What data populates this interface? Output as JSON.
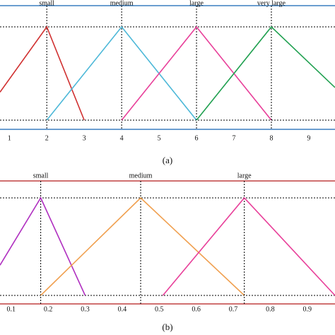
{
  "chart_data": [
    {
      "type": "line",
      "caption": "(a)",
      "frame_color": "#3a7fc0",
      "xlim": [
        0.75,
        9.7
      ],
      "ylim": [
        0,
        1
      ],
      "xticks": [
        1,
        2,
        3,
        4,
        5,
        6,
        7,
        8,
        9
      ],
      "series": [
        {
          "name": "small",
          "color": "#d03030",
          "x": [
            0.75,
            2,
            3
          ],
          "values": [
            0.3,
            1,
            0
          ]
        },
        {
          "name": "medium",
          "color": "#4db8d8",
          "x": [
            2,
            4,
            6
          ],
          "values": [
            0,
            1,
            0
          ]
        },
        {
          "name": "large",
          "color": "#e8409a",
          "x": [
            4,
            6,
            8
          ],
          "values": [
            0,
            1,
            0
          ]
        },
        {
          "name": "very large",
          "color": "#20a050",
          "x": [
            6,
            8,
            9.7
          ],
          "values": [
            0,
            1,
            0.35
          ]
        }
      ]
    },
    {
      "type": "line",
      "caption": "(b)",
      "frame_color": "#c04040",
      "xlim": [
        0.07,
        0.975
      ],
      "ylim": [
        0,
        1
      ],
      "xticks": [
        0.1,
        0.2,
        0.3,
        0.4,
        0.5,
        0.6,
        0.7,
        0.8,
        0.9
      ],
      "series": [
        {
          "name": "small",
          "color": "#b030c0",
          "x": [
            0.07,
            0.18,
            0.3
          ],
          "values": [
            0.31,
            1,
            0
          ]
        },
        {
          "name": "medium",
          "color": "#f0a050",
          "x": [
            0.18,
            0.45,
            0.73
          ],
          "values": [
            0,
            1,
            0
          ]
        },
        {
          "name": "large",
          "color": "#e8409a",
          "x": [
            0.51,
            0.73,
            0.975
          ],
          "values": [
            0,
            1,
            0
          ]
        }
      ]
    }
  ]
}
